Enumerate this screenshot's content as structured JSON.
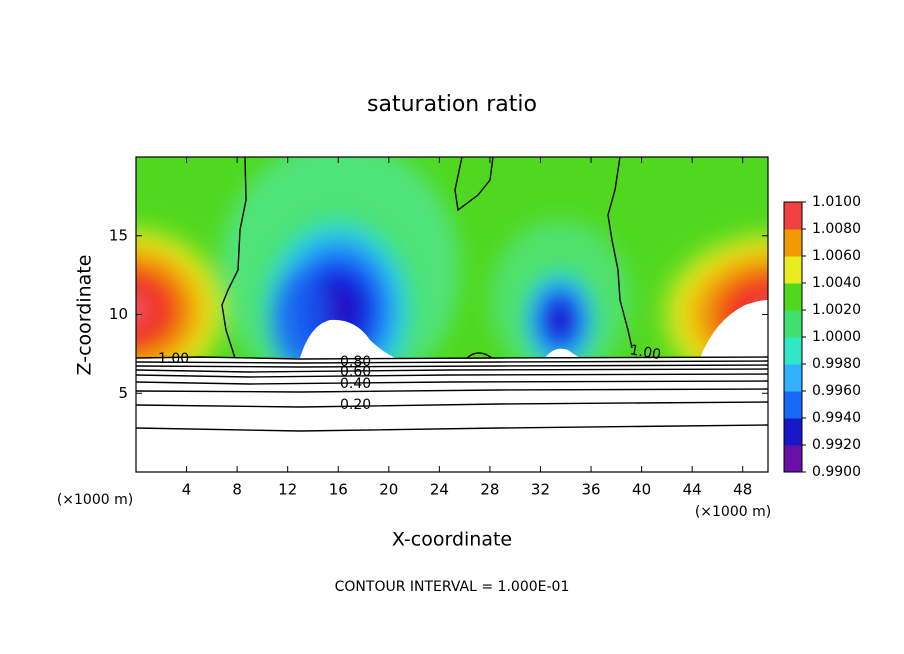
{
  "chart_data": {
    "type": "contour",
    "title": "saturation ratio",
    "x_label": "X-coordinate",
    "y_label": "Z-coordinate",
    "x_unit_left": "(×1000 m)",
    "x_unit_right": "(×1000 m)",
    "footer": "CONTOUR INTERVAL = 1.000E-01",
    "xlim": [
      0,
      50
    ],
    "xticks": [
      4,
      8,
      12,
      16,
      20,
      24,
      28,
      32,
      36,
      40,
      44,
      48
    ],
    "ylim": [
      0,
      20
    ],
    "yticks": [
      5,
      10,
      15
    ],
    "contour_labels": [
      "1.00",
      "0.80",
      "0.60",
      "0.40",
      "0.20",
      "1.00"
    ],
    "colorbar": {
      "lim": [
        0.99,
        1.01
      ],
      "ticks": [
        {
          "value": 0.99,
          "label": "0.9900"
        },
        {
          "value": 0.992,
          "label": "0.9920"
        },
        {
          "value": 0.994,
          "label": "0.9940"
        },
        {
          "value": 0.996,
          "label": "0.9960"
        },
        {
          "value": 0.998,
          "label": "0.9980"
        },
        {
          "value": 1.0,
          "label": "1.0000"
        },
        {
          "value": 1.002,
          "label": "1.0020"
        },
        {
          "value": 1.004,
          "label": "1.0040"
        },
        {
          "value": 1.006,
          "label": "1.0060"
        },
        {
          "value": 1.008,
          "label": "1.0080"
        },
        {
          "value": 1.01,
          "label": "1.0100"
        }
      ],
      "colors": [
        "#6a10a8",
        "#1818c8",
        "#1868f8",
        "#30b0ff",
        "#30e8c8",
        "#40e070",
        "#50d820",
        "#e8ec20",
        "#f09a00",
        "#f04040"
      ]
    }
  }
}
